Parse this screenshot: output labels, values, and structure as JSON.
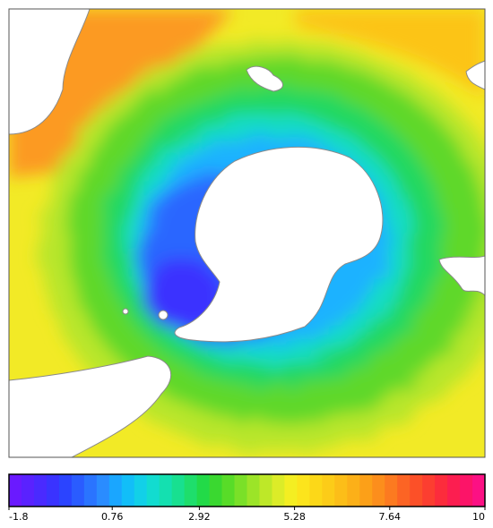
{
  "colorbar": {
    "lim": [
      -1.8,
      10
    ],
    "ticks": [
      -1.8,
      0.76,
      2.92,
      5.28,
      7.64,
      10
    ],
    "colors": [
      "#6a1aff",
      "#5a22ff",
      "#4a2aff",
      "#3a33ff",
      "#2b44ff",
      "#2a5cff",
      "#2a74ff",
      "#2a8cff",
      "#1aa6ff",
      "#12bef8",
      "#12d0e8",
      "#12dcd0",
      "#14e0b0",
      "#18e090",
      "#1ede6c",
      "#22da48",
      "#3ad830",
      "#58dc28",
      "#7ae028",
      "#9ce428",
      "#bee828",
      "#dcec28",
      "#f4ee22",
      "#fce41c",
      "#fcd818",
      "#fccc18",
      "#fcbe18",
      "#fcb018",
      "#fca018",
      "#fc8e1c",
      "#fc7a20",
      "#fc6424",
      "#fc5028",
      "#fc3e30",
      "#fc2c3c",
      "#fc1e50",
      "#fc1468",
      "#fc1084"
    ]
  }
}
